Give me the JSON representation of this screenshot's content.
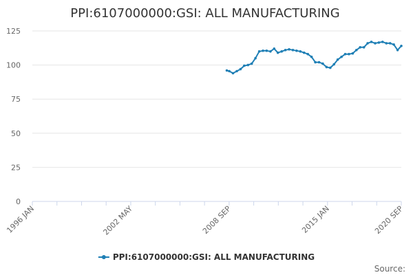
{
  "chart_data": {
    "type": "line",
    "title": "PPI:6107000000:GSI: ALL MANUFACTURING",
    "xlabel": "",
    "ylabel": "",
    "x_tick_labels": [
      "1996 JAN",
      "2002 MAY",
      "2008 SEP",
      "2015 JAN",
      "2020 SEP"
    ],
    "x_range": [
      "1996-01",
      "2020-09"
    ],
    "ylim": [
      0,
      125
    ],
    "y_ticks": [
      0,
      25,
      50,
      75,
      100,
      125
    ],
    "grid": "horizontal",
    "legend_position": "bottom-center",
    "colors": {
      "series": "#1f7fb5",
      "grid": "#e6e6e6",
      "axis": "#ccd6eb"
    },
    "series": [
      {
        "name": "PPI:6107000000:GSI: ALL MANUFACTURING",
        "x": [
          "2009-01",
          "2009-03",
          "2009-06",
          "2009-09",
          "2009-12",
          "2010-03",
          "2010-06",
          "2010-09",
          "2010-12",
          "2011-03",
          "2011-06",
          "2011-09",
          "2011-12",
          "2012-03",
          "2012-06",
          "2012-09",
          "2012-12",
          "2013-03",
          "2013-06",
          "2013-09",
          "2013-12",
          "2014-03",
          "2014-06",
          "2014-09",
          "2014-12",
          "2015-03",
          "2015-06",
          "2015-09",
          "2015-12",
          "2016-03",
          "2016-06",
          "2016-09",
          "2016-12",
          "2017-03",
          "2017-06",
          "2017-09",
          "2017-12",
          "2018-03",
          "2018-06",
          "2018-09",
          "2018-12",
          "2019-03",
          "2019-06",
          "2019-09",
          "2019-12",
          "2020-03",
          "2020-06",
          "2020-09"
        ],
        "y": [
          96,
          95.5,
          94,
          95.5,
          97,
          99.5,
          100,
          101,
          105,
          110,
          110.5,
          110.5,
          110,
          112,
          109,
          110,
          111,
          111.5,
          111,
          110.5,
          110,
          109,
          108,
          106,
          102,
          102,
          101,
          98.5,
          98,
          100.5,
          104,
          106,
          108,
          108,
          108.5,
          111,
          113,
          113,
          116,
          117,
          116,
          116.5,
          117,
          116,
          116,
          115,
          111,
          114
        ]
      }
    ]
  },
  "source_label": "Source:"
}
